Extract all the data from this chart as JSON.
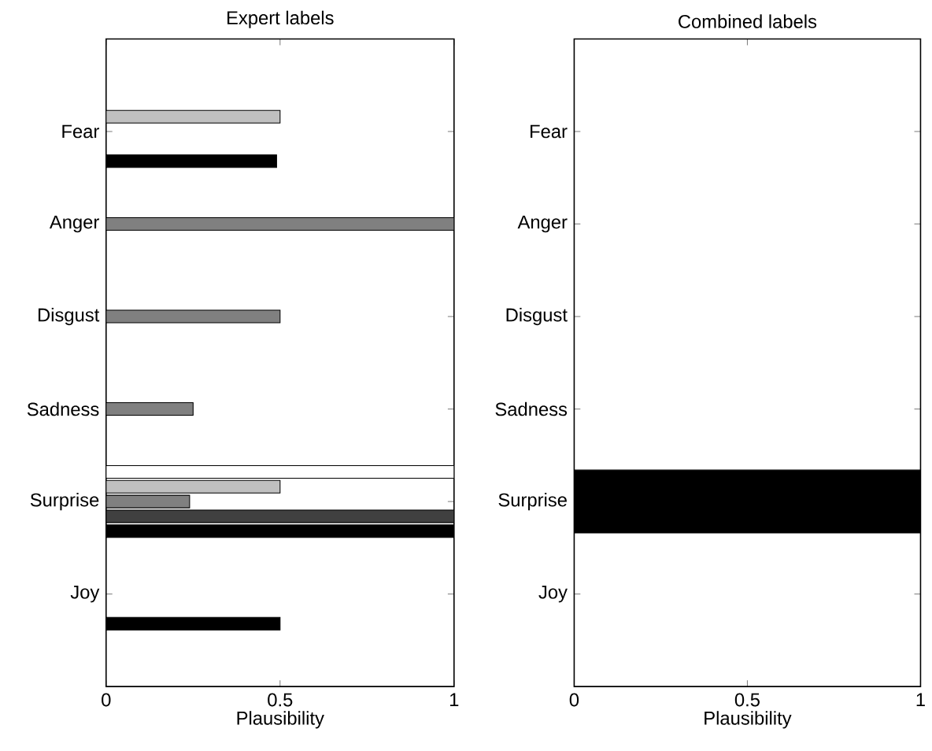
{
  "chart_data": [
    {
      "type": "bar",
      "orientation": "horizontal",
      "title": "Expert labels",
      "xlabel": "Plausibility",
      "categories": [
        "Fear",
        "Anger",
        "Disgust",
        "Sadness",
        "Surprise",
        "Joy"
      ],
      "xlim": [
        0,
        1
      ],
      "xticks": [
        0,
        0.5,
        1
      ],
      "series": [
        {
          "color": "#ffffff",
          "values": [
            null,
            null,
            null,
            null,
            1,
            null
          ]
        },
        {
          "color": "#c0c0c0",
          "values": [
            0.5,
            null,
            null,
            null,
            0.5,
            null
          ]
        },
        {
          "color": "#808080",
          "values": [
            null,
            1,
            0.5,
            0.25,
            0.24,
            null
          ]
        },
        {
          "color": "#404040",
          "values": [
            null,
            null,
            null,
            null,
            1,
            null
          ]
        },
        {
          "color": "#000000",
          "values": [
            0.49,
            null,
            null,
            null,
            1,
            0.5
          ]
        }
      ]
    },
    {
      "type": "bar",
      "orientation": "horizontal",
      "title": "Combined labels",
      "xlabel": "Plausibility",
      "categories": [
        "Fear",
        "Anger",
        "Disgust",
        "Sadness",
        "Surprise",
        "Joy"
      ],
      "xlim": [
        0,
        1
      ],
      "xticks": [
        0,
        0.5,
        1
      ],
      "series": [
        {
          "color": "#000000",
          "values": [
            null,
            null,
            null,
            null,
            1,
            null
          ]
        }
      ]
    }
  ]
}
